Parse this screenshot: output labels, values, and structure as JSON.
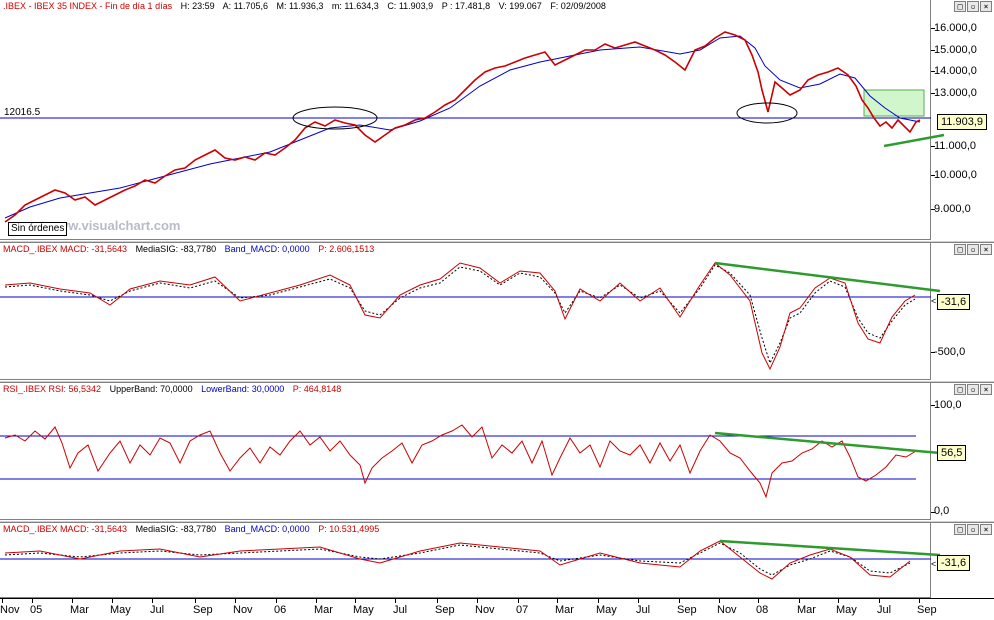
{
  "price_pane": {
    "header": {
      "symbol": ".IBEX - IBEX 35 INDEX - Fin de día 1 días",
      "time": "H: 23:59",
      "open": "A: 11.705,6",
      "high": "M: 11.936,3",
      "low": "m: 11.634,3",
      "close": "C: 11.903,9",
      "p": "P : 17.481,8",
      "volume": "V: 199.067",
      "date": "F: 02/09/2008"
    },
    "scale_labels": [
      "16.000,0",
      "15.000,0",
      "14.000,0",
      "13.000,0",
      "11.000,0",
      "10.000,0",
      "9.000,0"
    ],
    "last_value": "11.903,9",
    "hline_label": "12016.5",
    "watermark": "www.visualchart.com",
    "orders_label": "Sin órdenes"
  },
  "macd_pane": {
    "header": {
      "name": "MACD_.IBEX MACD: -31,5643",
      "signal": "MediaSIG: -83,7780",
      "band": "Band_MACD: 0,0000",
      "p": "P: 2.606,1513"
    },
    "scale_labels": [
      "-500,0"
    ],
    "last_value": "-31,6"
  },
  "rsi_pane": {
    "header": {
      "name": "RSI_.IBEX RSI: 56,5342",
      "upper": "UpperBand: 70,0000",
      "lower": "LowerBand: 30,0000",
      "p": "P: 464,8148"
    },
    "scale_labels": [
      "100,0",
      "0,0"
    ],
    "last_value": "56,5"
  },
  "macd2_pane": {
    "header": {
      "name": "MACD_.IBEX MACD: -31,5643",
      "signal": "MediaSIG: -83,7780",
      "band": "Band_MACD: 0,0000",
      "p": "P: 10.531,4995"
    },
    "last_value": "-31,6"
  },
  "x_axis": [
    "Nov",
    "05",
    "Mar",
    "May",
    "Jul",
    "Sep",
    "Nov",
    "06",
    "Mar",
    "May",
    "Jul",
    "Sep",
    "Nov",
    "07",
    "Mar",
    "May",
    "Jul",
    "Sep",
    "Nov",
    "08",
    "Mar",
    "May",
    "Jul",
    "Sep"
  ],
  "pane_buttons": [
    "□",
    "▫",
    "×"
  ],
  "colors": {
    "price": "#cc0000",
    "ma": "#0000cc",
    "trend": "#2e9b2e",
    "box": "#c8f5c0"
  }
}
